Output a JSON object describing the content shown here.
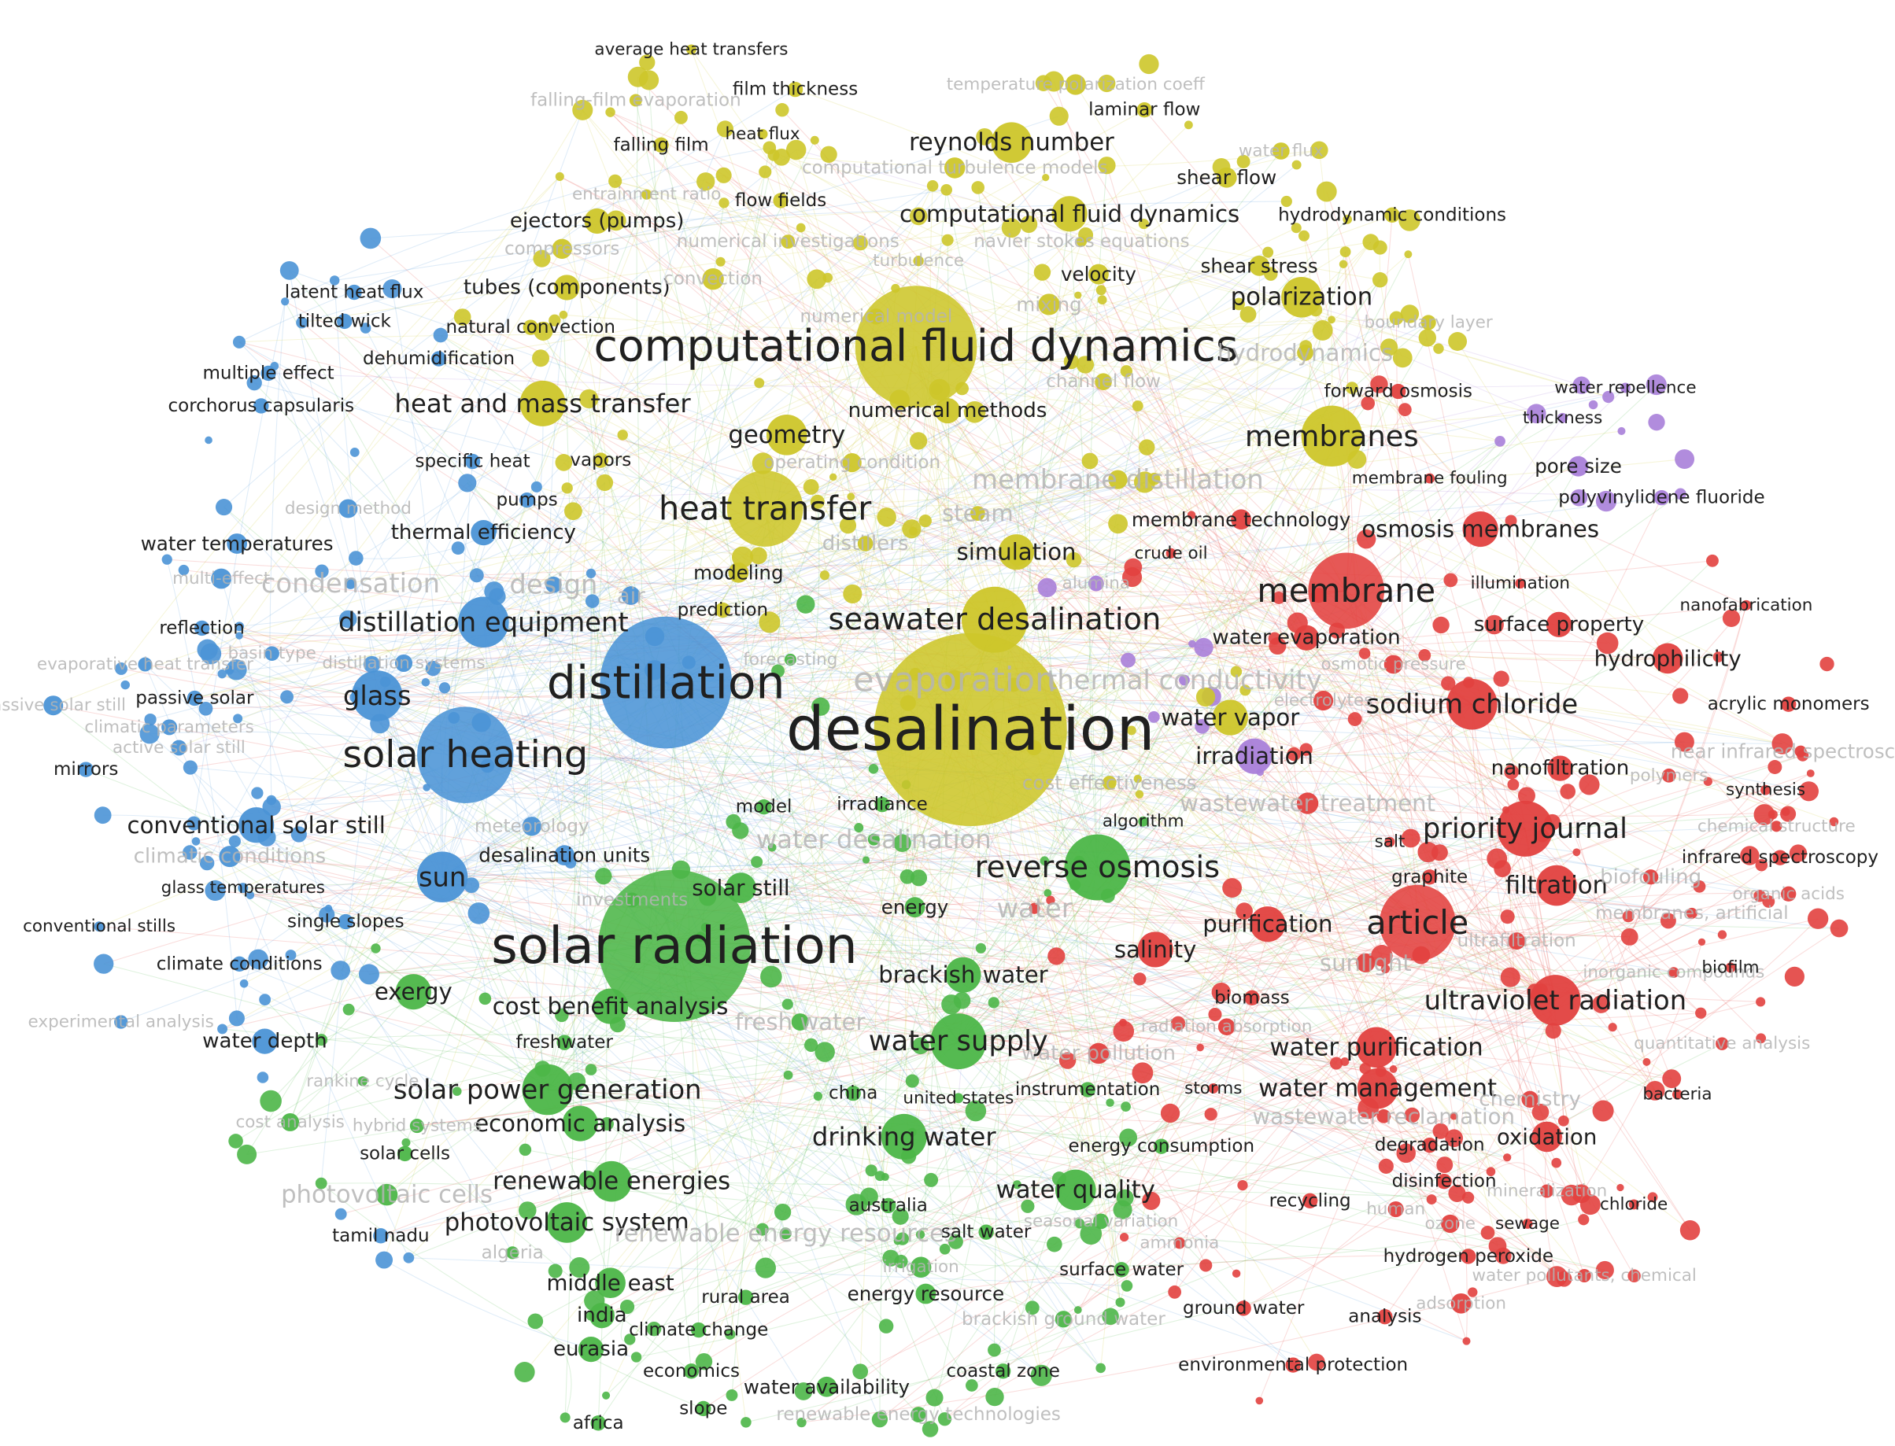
{
  "clusters": [
    {
      "color": "#cdc62a",
      "nodes": [
        "average heat transfers",
        "film thickness",
        "falling-film evaporation",
        "temperature polarization coeff",
        "laminar flow",
        "heat flux",
        "falling film",
        "reynolds number",
        "water flux",
        "computational turbulence models",
        "entrainment ratio",
        "flow fields",
        "shear flow",
        "ejectors (pumps)",
        "computational fluid dynamics",
        "hydrodynamic conditions",
        "compressors",
        "numerical investigations",
        "navier stokes equations",
        "turbulence",
        "shear stress",
        "velocity",
        "tubes (components)",
        "convection",
        "polarization",
        "mixing",
        "numerical model",
        "boundary layer",
        "natural convection",
        "computational fluid dynamics",
        "hydrodynamics",
        "channel flow",
        "heat and mass transfer",
        "numerical methods",
        "membranes",
        "geometry",
        "vapors",
        "operating condition",
        "membrane distillation",
        "heat transfer",
        "steam",
        "distillers",
        "simulation",
        "modeling",
        "prediction",
        "seawater desalination",
        "evaporation",
        "desalination",
        "water vapor",
        "cost effectiveness"
      ]
    },
    {
      "color": "#a97fd9",
      "nodes": [
        "water repellence",
        "thickness",
        "pore size",
        "polyvinylidene fluoride",
        "irradiation",
        "alumina",
        "thermal conductivity"
      ]
    },
    {
      "color": "#e2413f",
      "nodes": [
        "forward osmosis",
        "membrane fouling",
        "membrane technology",
        "osmosis membranes",
        "crude oil",
        "membrane",
        "illumination",
        "nanofabrication",
        "water evaporation",
        "surface property",
        "hydrophilicity",
        "osmotic pressure",
        "sodium chloride",
        "acrylic monomers",
        "electrolytes",
        "nanofiltration",
        "polymers",
        "synthesis",
        "near infrared spectroscopy",
        "wastewater treatment",
        "priority journal",
        "salt",
        "chemical structure",
        "infrared spectroscopy",
        "graphite",
        "filtration",
        "biofouling",
        "organic acids",
        "membranes, artificial",
        "water",
        "purification",
        "article",
        "ultrafiltration",
        "sunlight",
        "salinity",
        "inorganic compounds",
        "biofilm",
        "biomass",
        "ultraviolet radiation",
        "radiation absorption",
        "water pollution",
        "water purification",
        "quantitative analysis",
        "water management",
        "storms",
        "chemistry",
        "wastewater reclamation",
        "bacteria",
        "degradation",
        "oxidation",
        "disinfection",
        "recycling",
        "mineralization",
        "chloride",
        "human",
        "ozone",
        "sewage",
        "hydrogen peroxide",
        "water pollutants, chemical",
        "ammonia",
        "ground water",
        "analysis",
        "adsorption",
        "environmental protection"
      ]
    },
    {
      "color": "#4cb648",
      "nodes": [
        "reverse osmosis",
        "solar radiation",
        "solar still",
        "energy",
        "brackish water",
        "fresh water",
        "water supply",
        "freshwater",
        "cost benefit analysis",
        "exergy",
        "solar power generation",
        "china",
        "united states",
        "instrumentation",
        "economic analysis",
        "hybrid systems",
        "drinking water",
        "energy consumption",
        "solar cells",
        "renewable energies",
        "photovoltaic cells",
        "water quality",
        "seasonal variation",
        "australia",
        "photovoltaic system",
        "renewable energy resources",
        "salt water",
        "algeria",
        "irrigation",
        "surface water",
        "middle east",
        "rural area",
        "energy resource",
        "india",
        "climate change",
        "brackish ground water",
        "eurasia",
        "economics",
        "coastal zone",
        "water availability",
        "africa",
        "slope",
        "renewable energy technologies",
        "model",
        "irradiance",
        "water desalination",
        "algorithm",
        "investments",
        "forecasting",
        "rankine cycle",
        "cost analysis"
      ]
    },
    {
      "color": "#4b94d6",
      "nodes": [
        "latent heat flux",
        "tilted wick",
        "dehumidification",
        "multiple effect",
        "corchorus capsularis",
        "specific heat",
        "pumps",
        "thermal efficiency",
        "design method",
        "water temperatures",
        "condensation",
        "design",
        "air",
        "multi-effect",
        "reflection",
        "distillation equipment",
        "evaporative heat transfer",
        "basin type",
        "distillation systems",
        "distillation",
        "passive solar",
        "glass",
        "passive solar still",
        "climatic parameters",
        "active solar still",
        "mirrors",
        "solar heating",
        "meteorology",
        "conventional solar still",
        "climatic conditions",
        "desalination units",
        "sun",
        "glass temperatures",
        "single slopes",
        "conventional stills",
        "climate conditions",
        "experimental analysis",
        "water depth",
        "tamil nadu"
      ]
    }
  ]
}
